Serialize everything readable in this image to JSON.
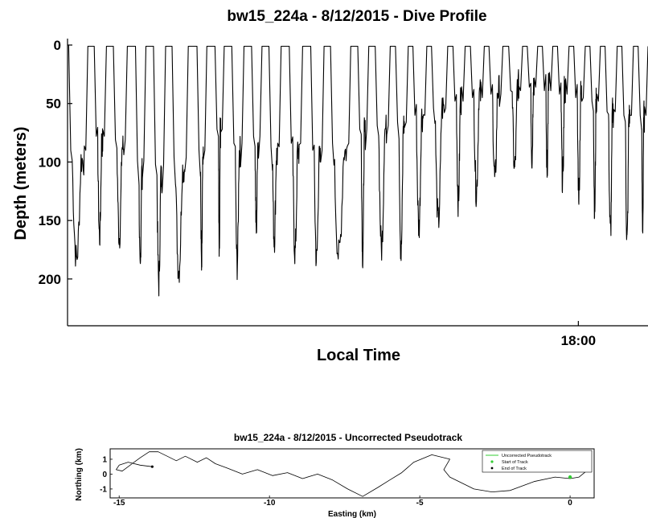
{
  "chart_data": [
    {
      "type": "line",
      "title": "bw15_224a - 8/12/2015 - Dive Profile",
      "xlabel": "Local Time",
      "ylabel": "Depth (meters)",
      "y_reversed": true,
      "ylim": [
        0,
        240
      ],
      "yticks": [
        0,
        50,
        100,
        150,
        200
      ],
      "xlim": [
        0,
        100
      ],
      "xticks": [
        {
          "x": 88,
          "label": "18:00"
        }
      ],
      "grid": false,
      "series": [
        {
          "color": "#000000",
          "dives": [
            {
              "start": 0.4,
              "top_end": 0.2,
              "max": 197,
              "floor": 150
            },
            {
              "start": 3.5,
              "top_end": 4.6,
              "max": 178,
              "floor": 130
            },
            {
              "start": 6.7,
              "top_end": 7.9,
              "max": 178,
              "floor": 135
            },
            {
              "start": 10.3,
              "top_end": 11.7,
              "max": 210,
              "floor": 165
            },
            {
              "start": 13.5,
              "top_end": 14.8,
              "max": 218,
              "floor": 170
            },
            {
              "start": 16.9,
              "top_end": 18.0,
              "max": 207,
              "floor": 160
            },
            {
              "start": 20.8,
              "top_end": 22.3,
              "max": 200,
              "floor": 150
            },
            {
              "start": 24.0,
              "top_end": 25.4,
              "max": 195,
              "floor": 120
            },
            {
              "start": 27.0,
              "top_end": 28.3,
              "max": 202,
              "floor": 140
            },
            {
              "start": 30.4,
              "top_end": 31.7,
              "max": 172,
              "floor": 130
            },
            {
              "start": 33.5,
              "top_end": 34.7,
              "max": 180,
              "floor": 145
            },
            {
              "start": 36.8,
              "top_end": 38.2,
              "max": 192,
              "floor": 140
            },
            {
              "start": 40.5,
              "top_end": 41.9,
              "max": 198,
              "floor": 150
            },
            {
              "start": 44.2,
              "top_end": 45.3,
              "max": 194,
              "floor": 140
            },
            {
              "start": 48.8,
              "top_end": 50.0,
              "max": 193,
              "floor": 120
            },
            {
              "start": 51.9,
              "top_end": 53.0,
              "max": 188,
              "floor": 115
            },
            {
              "start": 55.6,
              "top_end": 56.5,
              "max": 193,
              "floor": 110
            },
            {
              "start": 58.7,
              "top_end": 59.5,
              "max": 170,
              "floor": 100
            },
            {
              "start": 61.9,
              "top_end": 62.7,
              "max": 165,
              "floor": 90
            },
            {
              "start": 65.5,
              "top_end": 66.4,
              "max": 148,
              "floor": 80
            },
            {
              "start": 68.5,
              "top_end": 69.4,
              "max": 140,
              "floor": 75
            },
            {
              "start": 71.8,
              "top_end": 72.6,
              "max": 130,
              "floor": 70
            },
            {
              "start": 75.0,
              "top_end": 76.0,
              "max": 120,
              "floor": 65
            },
            {
              "start": 78.4,
              "top_end": 79.2,
              "max": 110,
              "floor": 60
            },
            {
              "start": 81.0,
              "top_end": 81.8,
              "max": 120,
              "floor": 65
            },
            {
              "start": 83.6,
              "top_end": 84.4,
              "max": 130,
              "floor": 70
            },
            {
              "start": 86.4,
              "top_end": 87.2,
              "max": 140,
              "floor": 75
            },
            {
              "start": 89.2,
              "top_end": 90.0,
              "max": 155,
              "floor": 80
            },
            {
              "start": 91.8,
              "top_end": 92.6,
              "max": 175,
              "floor": 95
            },
            {
              "start": 94.7,
              "top_end": 95.5,
              "max": 182,
              "floor": 100
            },
            {
              "start": 97.5,
              "top_end": 98.3,
              "max": 168,
              "floor": 100
            }
          ]
        }
      ]
    },
    {
      "type": "line",
      "title": "bw15_224a - 8/12/2015 - Uncorrected Pseudotrack",
      "xlabel": "Easting (km)",
      "ylabel": "Northing (km)",
      "xlim": [
        -15.3,
        0.8
      ],
      "ylim": [
        -1.6,
        1.7
      ],
      "xticks": [
        -15,
        -10,
        -5,
        0
      ],
      "yticks": [
        1,
        0,
        -1
      ],
      "legend": {
        "position": "top-right",
        "entries": [
          "Uncorrected Pseudotrack",
          "Start of Track",
          "End of Track"
        ]
      },
      "series": [
        {
          "name": "Uncorrected Pseudotrack",
          "color": "#000000",
          "x": [
            0.2,
            0.5,
            0.6,
            0.3,
            0.0,
            -0.5,
            -1.2,
            -2.0,
            -2.6,
            -3.2,
            -3.6,
            -4.0,
            -4.2,
            -4.0,
            -4.6,
            -5.2,
            -5.6,
            -6.0,
            -6.4,
            -6.9,
            -7.4,
            -7.9,
            -8.4,
            -8.9,
            -9.4,
            -9.9,
            -10.4,
            -10.9,
            -11.4,
            -11.8,
            -12.1,
            -12.4,
            -12.8,
            -13.1,
            -13.4,
            -13.7,
            -14.0,
            -14.3,
            -14.5,
            -14.7,
            -14.9,
            -15.1,
            -15.0,
            -14.7,
            -14.3,
            -13.9
          ],
          "y": [
            0.6,
            1.0,
            0.3,
            -0.2,
            -0.3,
            -0.2,
            -0.5,
            -1.1,
            -1.2,
            -1.0,
            -0.6,
            -0.2,
            0.3,
            1.0,
            1.3,
            0.8,
            0.1,
            -0.4,
            -0.9,
            -1.5,
            -1.0,
            -0.4,
            0.0,
            -0.3,
            0.1,
            -0.1,
            0.3,
            0.0,
            0.4,
            0.7,
            1.1,
            0.8,
            1.2,
            0.9,
            1.2,
            1.5,
            1.5,
            1.1,
            0.8,
            0.5,
            0.2,
            0.3,
            0.6,
            0.8,
            0.6,
            0.5
          ]
        },
        {
          "name": "Start of Track",
          "color": "#33cc33",
          "x": [
            0.0
          ],
          "y": [
            -0.2
          ]
        },
        {
          "name": "End of Track",
          "color": "#000000",
          "x": [
            -13.9
          ],
          "y": [
            0.5
          ]
        }
      ]
    }
  ]
}
